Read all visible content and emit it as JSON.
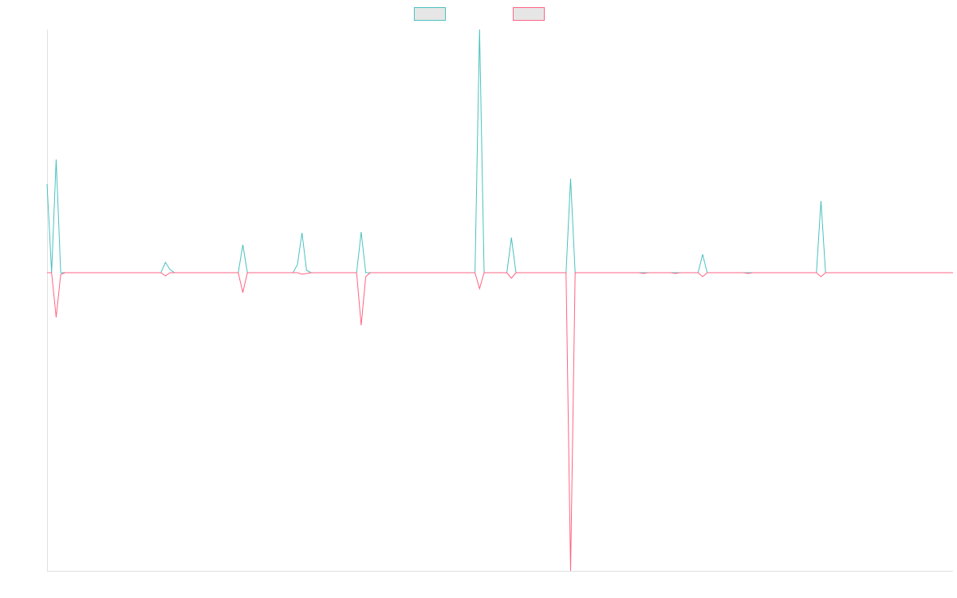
{
  "chart_data": {
    "type": "line",
    "categories": [
      null,
      null,
      null,
      null,
      null,
      null,
      null,
      null,
      null,
      null,
      null,
      null,
      null,
      null,
      null,
      null,
      null,
      null,
      null,
      null,
      null,
      null,
      null,
      null,
      null,
      null,
      null,
      null,
      null,
      null,
      null,
      null,
      null,
      null,
      null,
      null,
      null,
      null,
      null,
      null,
      null,
      null,
      null,
      null,
      null,
      null,
      null,
      null,
      null,
      null,
      null,
      null,
      null,
      null,
      null,
      null,
      null,
      null,
      null,
      null,
      null,
      null,
      null,
      null,
      null,
      null,
      null,
      null,
      null,
      null,
      null,
      null,
      null,
      null,
      null,
      null,
      null,
      null,
      null,
      null,
      null,
      null,
      null,
      null,
      null,
      null,
      null,
      null,
      null,
      null,
      null,
      null,
      null,
      null,
      null,
      null,
      null,
      null,
      null,
      null,
      null,
      null,
      null,
      null,
      null,
      null,
      null,
      null,
      null,
      null,
      null,
      null,
      null,
      null,
      null,
      null,
      null,
      null,
      null,
      null,
      null,
      null,
      null,
      null,
      null,
      null,
      null,
      null,
      null,
      null,
      null,
      null,
      null,
      null,
      null,
      null,
      null,
      null,
      null,
      null,
      null,
      null,
      null,
      null,
      null,
      null,
      null,
      null,
      null,
      null,
      null,
      null,
      null,
      null,
      null,
      null,
      null,
      null,
      null,
      null,
      null,
      null,
      null,
      null,
      null,
      null,
      null,
      null,
      null,
      null,
      null,
      null,
      null,
      null,
      null,
      null,
      null,
      null,
      null,
      null,
      null,
      null,
      null,
      null,
      null,
      null,
      null,
      null,
      null,
      null,
      null,
      null,
      null,
      null,
      null,
      null,
      null,
      null,
      null,
      null
    ],
    "series": [
      {
        "color": "#4bc0c0",
        "values": [
          111,
          0,
          142,
          0,
          0,
          0,
          0,
          0,
          0,
          0,
          0,
          0,
          0,
          0,
          0,
          0,
          0,
          0,
          0,
          0,
          0,
          0,
          0,
          0,
          0,
          0,
          13,
          4,
          0,
          0,
          0,
          0,
          0,
          0,
          0,
          0,
          0,
          0,
          0,
          0,
          0,
          0,
          0,
          35,
          0,
          0,
          0,
          0,
          0,
          0,
          0,
          0,
          0,
          0,
          0,
          10,
          50,
          3,
          0,
          0,
          0,
          0,
          0,
          0,
          0,
          0,
          0,
          0,
          0,
          51,
          0,
          0,
          0,
          0,
          0,
          0,
          0,
          0,
          0,
          0,
          0,
          0,
          0,
          0,
          0,
          0,
          0,
          0,
          0,
          0,
          0,
          0,
          0,
          0,
          0,
          305,
          0,
          0,
          0,
          0,
          0,
          0,
          44,
          0,
          0,
          0,
          0,
          0,
          0,
          0,
          0,
          0,
          0,
          0,
          0,
          118,
          0,
          0,
          0,
          0,
          0,
          0,
          0,
          0,
          0,
          0,
          0,
          0,
          0,
          0,
          0,
          0,
          0,
          0,
          0,
          0,
          0,
          0,
          0,
          0,
          0,
          0,
          0,
          0,
          23,
          0,
          0,
          0,
          0,
          0,
          0,
          0,
          0,
          0,
          0,
          0,
          0,
          0,
          0,
          0,
          0,
          0,
          0,
          0,
          0,
          0,
          0,
          0,
          0,
          0,
          90,
          0,
          0,
          0,
          0,
          0,
          0,
          0,
          0,
          0,
          0,
          0,
          0,
          0,
          0,
          0,
          0,
          0,
          0,
          0,
          0,
          0,
          0,
          0,
          0,
          0,
          0,
          0,
          0,
          0
        ]
      },
      {
        "color": "#ff6384",
        "values": [
          0,
          0,
          -56,
          -2,
          0,
          0,
          0,
          0,
          0,
          0,
          0,
          0,
          0,
          0,
          0,
          0,
          0,
          0,
          0,
          0,
          0,
          0,
          0,
          0,
          0,
          0,
          -4,
          0,
          0,
          0,
          0,
          0,
          0,
          0,
          0,
          0,
          0,
          0,
          0,
          0,
          0,
          0,
          0,
          -25,
          0,
          0,
          0,
          0,
          0,
          0,
          0,
          0,
          0,
          0,
          0,
          0,
          -2,
          -1,
          0,
          0,
          0,
          0,
          0,
          0,
          0,
          0,
          0,
          0,
          0,
          -66,
          -5,
          0,
          0,
          0,
          0,
          0,
          0,
          0,
          0,
          0,
          0,
          0,
          0,
          0,
          0,
          0,
          0,
          0,
          0,
          0,
          0,
          0,
          0,
          0,
          0,
          -20,
          0,
          0,
          0,
          0,
          0,
          0,
          -7,
          0,
          0,
          0,
          0,
          0,
          0,
          0,
          0,
          0,
          0,
          0,
          0,
          -374,
          0,
          0,
          0,
          0,
          0,
          0,
          0,
          0,
          0,
          0,
          0,
          0,
          0,
          0,
          0,
          -1,
          0,
          0,
          0,
          0,
          0,
          0,
          -1,
          0,
          0,
          0,
          0,
          0,
          -5,
          0,
          0,
          0,
          0,
          0,
          0,
          0,
          0,
          0,
          -1,
          0,
          0,
          0,
          0,
          0,
          0,
          0,
          0,
          0,
          0,
          0,
          0,
          0,
          0,
          0,
          -5,
          0,
          0,
          0,
          0,
          0,
          0,
          0,
          0,
          0,
          0,
          0,
          0,
          0,
          0,
          0,
          0,
          0,
          0,
          0,
          0,
          0,
          0,
          0,
          0,
          0,
          0,
          0,
          0,
          0
        ]
      }
    ],
    "ylim": [
      -374,
      305
    ],
    "grid": false,
    "legend": "top"
  }
}
